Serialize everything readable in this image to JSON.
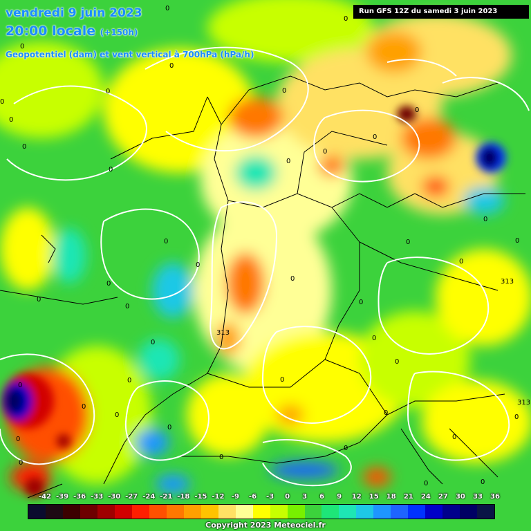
{
  "header": {
    "date_line": "vendredi 9 juin 2023",
    "time_line": "20:00 locale",
    "time_offset": "(+150h)",
    "parameter": "Geopotentiel (dam) et vent vertical à 700hPa (hPa/h)",
    "run": "Run GFS 12Z du samedi 3 juin 2023"
  },
  "map": {
    "background_color": "#3cd23c",
    "contour_color": "#ffffff",
    "border_color": "#000000",
    "contour_labels": [
      "313",
      "313",
      "313"
    ]
  },
  "legend": {
    "ticks": [
      "-42",
      "-39",
      "-36",
      "-33",
      "-30",
      "-27",
      "-24",
      "-21",
      "-18",
      "-15",
      "-12",
      "-9",
      "-6",
      "-3",
      "0",
      "3",
      "6",
      "9",
      "12",
      "15",
      "18",
      "21",
      "24",
      "27",
      "30",
      "33",
      "36"
    ],
    "colors": [
      "#0b0b2e",
      "#1e0a14",
      "#3c0000",
      "#6e0000",
      "#a00000",
      "#d20000",
      "#ff1e00",
      "#ff5000",
      "#ff7800",
      "#ffa000",
      "#ffc300",
      "#ffe164",
      "#ffff96",
      "#ffff00",
      "#c8ff00",
      "#78f000",
      "#3cd23c",
      "#1ee678",
      "#1ee6b4",
      "#1ec8e6",
      "#1e96ff",
      "#1e64ff",
      "#0032ff",
      "#0000c8",
      "#00008c",
      "#000064",
      "#0a1446"
    ]
  },
  "footer": {
    "copyright": "Copyright 2023 Meteociel.fr"
  }
}
